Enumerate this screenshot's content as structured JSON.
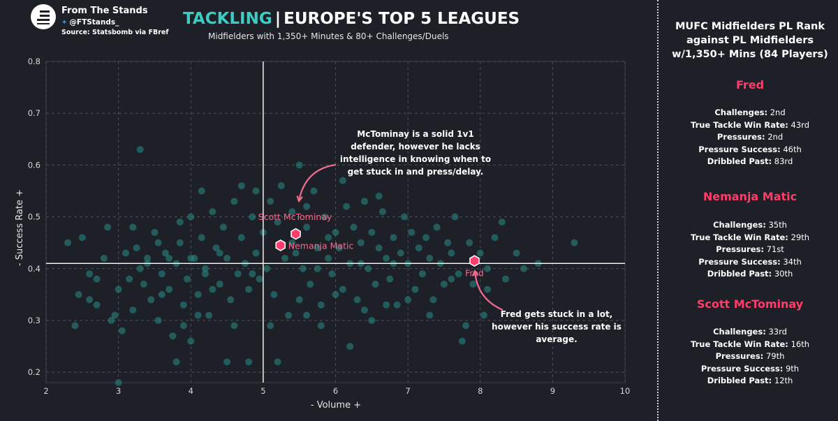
{
  "brand": {
    "name": "From The Stands",
    "handle": "@FTStands_",
    "source": "Source: Statsbomb via FBref",
    "logo": "ftstands-logo",
    "twitter_icon": "twitter-bird-icon"
  },
  "title": {
    "accent": "TACKLING",
    "separator": "|",
    "main": "EUROPE'S TOP 5 LEAGUES"
  },
  "subtitle": "Midfielders with 1,350+ Minutes & 80+ Challenges/Duels",
  "colors": {
    "background": "#1d2127",
    "points": "#2a8c87",
    "highlight": "#ff3d6b",
    "accent": "#3ecbc4",
    "annotation": "#f06b8e"
  },
  "chart_data": {
    "type": "scatter",
    "xlabel": "- Volume +",
    "ylabel": "- Success Rate +",
    "xlim": [
      2,
      10
    ],
    "ylim": [
      0.18,
      0.8
    ],
    "xticks": [
      "2",
      "3",
      "4",
      "5",
      "6",
      "7",
      "8",
      "9",
      "10"
    ],
    "yticks": [
      "0.2",
      "0.3",
      "0.4",
      "0.5",
      "0.6",
      "0.7",
      "0.8"
    ],
    "x_reference": 5.0,
    "y_reference": 0.41,
    "grid": true,
    "background_points": [
      [
        2.3,
        0.45
      ],
      [
        2.45,
        0.35
      ],
      [
        2.5,
        0.46
      ],
      [
        2.6,
        0.39
      ],
      [
        2.7,
        0.33
      ],
      [
        2.4,
        0.29
      ],
      [
        2.8,
        0.42
      ],
      [
        2.85,
        0.48
      ],
      [
        2.95,
        0.31
      ],
      [
        3.0,
        0.36
      ],
      [
        3.1,
        0.43
      ],
      [
        3.05,
        0.28
      ],
      [
        3.15,
        0.38
      ],
      [
        3.2,
        0.32
      ],
      [
        3.25,
        0.44
      ],
      [
        3.3,
        0.63
      ],
      [
        3.35,
        0.37
      ],
      [
        3.4,
        0.41
      ],
      [
        3.45,
        0.34
      ],
      [
        3.5,
        0.47
      ],
      [
        3.55,
        0.3
      ],
      [
        3.6,
        0.39
      ],
      [
        3.65,
        0.43
      ],
      [
        3.7,
        0.36
      ],
      [
        3.75,
        0.27
      ],
      [
        3.8,
        0.41
      ],
      [
        3.85,
        0.45
      ],
      [
        3.9,
        0.33
      ],
      [
        3.95,
        0.38
      ],
      [
        4.0,
        0.5
      ],
      [
        4.05,
        0.42
      ],
      [
        4.1,
        0.35
      ],
      [
        4.15,
        0.46
      ],
      [
        4.2,
        0.4
      ],
      [
        4.25,
        0.31
      ],
      [
        4.3,
        0.51
      ],
      [
        4.35,
        0.44
      ],
      [
        4.4,
        0.37
      ],
      [
        4.45,
        0.48
      ],
      [
        4.5,
        0.42
      ],
      [
        4.55,
        0.34
      ],
      [
        4.6,
        0.53
      ],
      [
        4.65,
        0.39
      ],
      [
        4.7,
        0.46
      ],
      [
        4.75,
        0.41
      ],
      [
        4.8,
        0.36
      ],
      [
        4.85,
        0.5
      ],
      [
        4.9,
        0.43
      ],
      [
        4.95,
        0.38
      ],
      [
        5.0,
        0.47
      ],
      [
        5.05,
        0.4
      ],
      [
        5.1,
        0.53
      ],
      [
        5.15,
        0.35
      ],
      [
        5.2,
        0.49
      ],
      [
        5.3,
        0.42
      ],
      [
        5.35,
        0.31
      ],
      [
        5.4,
        0.51
      ],
      [
        5.45,
        0.43
      ],
      [
        5.5,
        0.6
      ],
      [
        5.55,
        0.4
      ],
      [
        5.6,
        0.48
      ],
      [
        5.65,
        0.37
      ],
      [
        5.7,
        0.55
      ],
      [
        5.75,
        0.44
      ],
      [
        5.8,
        0.33
      ],
      [
        5.85,
        0.5
      ],
      [
        5.9,
        0.42
      ],
      [
        5.95,
        0.39
      ],
      [
        6.0,
        0.47
      ],
      [
        6.05,
        0.44
      ],
      [
        6.1,
        0.36
      ],
      [
        6.15,
        0.52
      ],
      [
        6.2,
        0.41
      ],
      [
        6.25,
        0.48
      ],
      [
        6.3,
        0.34
      ],
      [
        6.35,
        0.45
      ],
      [
        6.4,
        0.53
      ],
      [
        6.45,
        0.4
      ],
      [
        6.5,
        0.47
      ],
      [
        6.55,
        0.37
      ],
      [
        6.6,
        0.44
      ],
      [
        6.65,
        0.51
      ],
      [
        6.7,
        0.42
      ],
      [
        6.75,
        0.38
      ],
      [
        6.8,
        0.46
      ],
      [
        6.85,
        0.33
      ],
      [
        6.9,
        0.43
      ],
      [
        6.95,
        0.5
      ],
      [
        7.0,
        0.41
      ],
      [
        7.05,
        0.47
      ],
      [
        7.1,
        0.36
      ],
      [
        7.15,
        0.44
      ],
      [
        7.2,
        0.39
      ],
      [
        7.25,
        0.46
      ],
      [
        7.3,
        0.42
      ],
      [
        7.35,
        0.34
      ],
      [
        7.4,
        0.48
      ],
      [
        7.45,
        0.41
      ],
      [
        7.5,
        0.37
      ],
      [
        7.55,
        0.45
      ],
      [
        7.6,
        0.43
      ],
      [
        7.65,
        0.5
      ],
      [
        7.7,
        0.39
      ],
      [
        7.75,
        0.26
      ],
      [
        7.85,
        0.45
      ],
      [
        7.9,
        0.37
      ],
      [
        8.0,
        0.43
      ],
      [
        8.05,
        0.31
      ],
      [
        8.1,
        0.4
      ],
      [
        8.2,
        0.46
      ],
      [
        8.3,
        0.49
      ],
      [
        8.35,
        0.38
      ],
      [
        8.5,
        0.43
      ],
      [
        8.6,
        0.4
      ],
      [
        8.8,
        0.41
      ],
      [
        9.3,
        0.45
      ],
      [
        3.0,
        0.18
      ],
      [
        3.4,
        0.42
      ],
      [
        2.9,
        0.3
      ],
      [
        4.5,
        0.22
      ],
      [
        4.8,
        0.22
      ],
      [
        5.2,
        0.22
      ],
      [
        6.2,
        0.25
      ],
      [
        3.8,
        0.22
      ],
      [
        4.0,
        0.26
      ],
      [
        5.8,
        0.29
      ],
      [
        6.5,
        0.3
      ],
      [
        3.6,
        0.35
      ],
      [
        4.2,
        0.39
      ],
      [
        4.6,
        0.29
      ],
      [
        5.1,
        0.29
      ],
      [
        5.4,
        0.45
      ],
      [
        6.0,
        0.35
      ],
      [
        6.7,
        0.33
      ],
      [
        7.3,
        0.31
      ],
      [
        7.0,
        0.34
      ],
      [
        4.0,
        0.42
      ],
      [
        3.55,
        0.45
      ],
      [
        4.7,
        0.56
      ],
      [
        4.9,
        0.55
      ],
      [
        5.25,
        0.56
      ],
      [
        5.6,
        0.52
      ],
      [
        6.1,
        0.57
      ],
      [
        6.6,
        0.54
      ],
      [
        4.15,
        0.55
      ],
      [
        3.85,
        0.49
      ],
      [
        3.3,
        0.4
      ],
      [
        2.7,
        0.38
      ],
      [
        5.75,
        0.4
      ],
      [
        6.35,
        0.41
      ],
      [
        4.4,
        0.43
      ],
      [
        4.85,
        0.39
      ],
      [
        5.9,
        0.46
      ],
      [
        3.7,
        0.42
      ],
      [
        4.3,
        0.36
      ],
      [
        5.5,
        0.34
      ],
      [
        6.8,
        0.41
      ],
      [
        7.6,
        0.38
      ],
      [
        8.1,
        0.36
      ],
      [
        2.6,
        0.34
      ],
      [
        3.2,
        0.48
      ],
      [
        4.1,
        0.31
      ],
      [
        5.6,
        0.31
      ],
      [
        6.4,
        0.32
      ],
      [
        7.8,
        0.29
      ],
      [
        3.9,
        0.29
      ]
    ],
    "highlighted": [
      {
        "name": "Scott McTominay",
        "x": 5.45,
        "y": 0.467
      },
      {
        "name": "Nemanja Matic",
        "x": 5.24,
        "y": 0.445
      },
      {
        "name": "Fred",
        "x": 7.92,
        "y": 0.415
      }
    ],
    "annotations": [
      {
        "lines": [
          "McTominay is a solid 1v1",
          "defender, however he lacks",
          "intelligence in knowing when to",
          "get stuck in and press/delay."
        ],
        "target": "Scott McTominay"
      },
      {
        "lines": [
          "Fred gets stuck in a lot,",
          "however his success rate is",
          "average."
        ],
        "target": "Fred"
      }
    ]
  },
  "panel": {
    "title_lines": [
      "MUFC Midfielders PL Rank",
      "against PL Midfielders",
      "w/1,350+ Mins (84 Players)"
    ],
    "players": [
      {
        "name": "Fred",
        "stats": [
          {
            "label": "Challenges:",
            "value": "2nd"
          },
          {
            "label": "True Tackle Win Rate:",
            "value": "43rd"
          },
          {
            "label": "Pressures:",
            "value": "2nd"
          },
          {
            "label": "Pressure Success:",
            "value": "46th"
          },
          {
            "label": "Dribbled Past:",
            "value": "83rd"
          }
        ]
      },
      {
        "name": "Nemanja Matic",
        "stats": [
          {
            "label": "Challenges:",
            "value": "35th"
          },
          {
            "label": "True Tackle Win Rate:",
            "value": "29th"
          },
          {
            "label": "Pressures:",
            "value": "71st"
          },
          {
            "label": "Pressure Success:",
            "value": "34th"
          },
          {
            "label": "Dribbled Past:",
            "value": "30th"
          }
        ]
      },
      {
        "name": "Scott McTominay",
        "stats": [
          {
            "label": "Challenges:",
            "value": "33rd"
          },
          {
            "label": "True Tackle Win Rate:",
            "value": "16th"
          },
          {
            "label": "Pressures:",
            "value": "79th"
          },
          {
            "label": "Pressure Success:",
            "value": "9th"
          },
          {
            "label": "Dribbled Past:",
            "value": "12th"
          }
        ]
      }
    ]
  }
}
